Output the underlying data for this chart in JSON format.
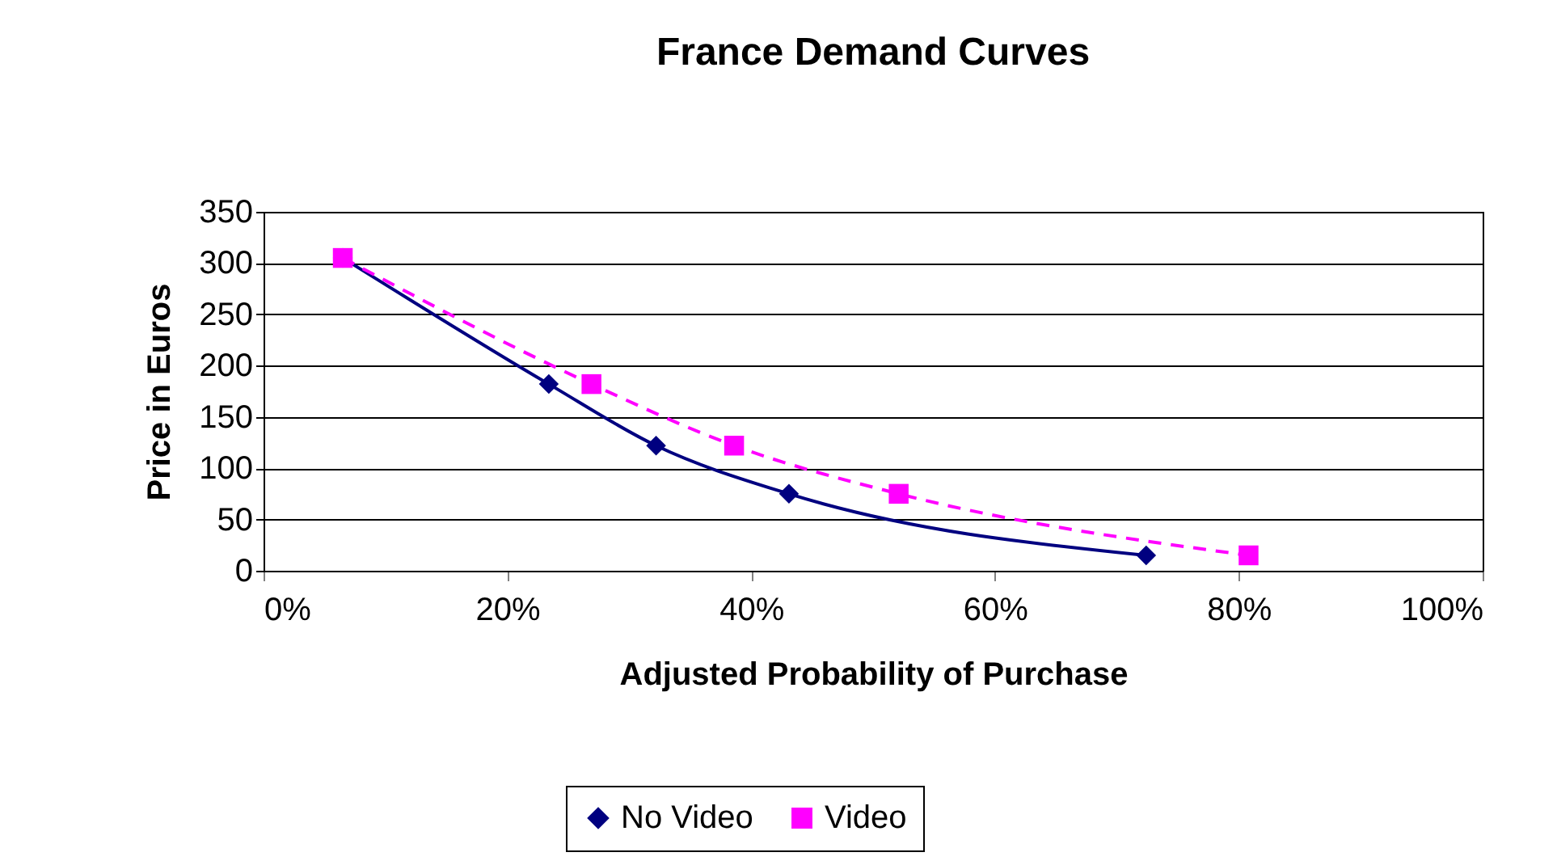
{
  "chart_data": {
    "type": "line",
    "title": "France Demand Curves",
    "xlabel": "Adjusted Probability of Purchase",
    "ylabel": "Price in Euros",
    "xlim": [
      0,
      100
    ],
    "xticks": [
      {
        "value": 0,
        "label": "0%"
      },
      {
        "value": 20,
        "label": "20%"
      },
      {
        "value": 40,
        "label": "40%"
      },
      {
        "value": 60,
        "label": "60%"
      },
      {
        "value": 80,
        "label": "80%"
      },
      {
        "value": 100,
        "label": "100%"
      }
    ],
    "ylim": [
      0,
      350
    ],
    "yticks": [
      0,
      50,
      100,
      150,
      200,
      250,
      300,
      350
    ],
    "grid": "y",
    "legend": "bottom",
    "series": [
      {
        "name": "No Video",
        "color": "#000080",
        "marker": "diamond",
        "line_style": "solid",
        "x": [
          6.5,
          23.4,
          32.2,
          43.1,
          72.4
        ],
        "values": [
          305,
          182,
          122,
          75,
          15
        ]
      },
      {
        "name": "Video",
        "color": "#ff00ff",
        "marker": "square",
        "line_style": "dashed",
        "x": [
          6.5,
          26.9,
          38.6,
          52.1,
          80.8
        ],
        "values": [
          305,
          182,
          122,
          75,
          15
        ]
      }
    ]
  }
}
